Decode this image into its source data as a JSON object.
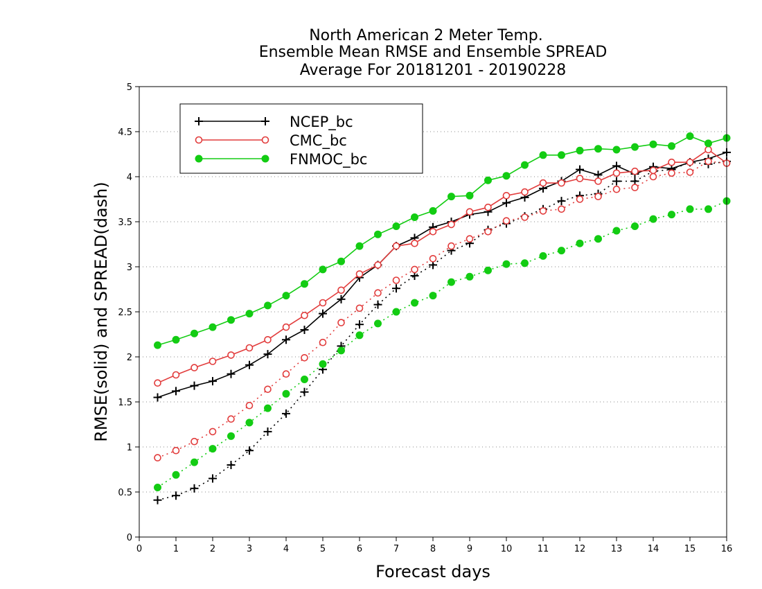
{
  "chart_data": {
    "type": "line",
    "title_lines": [
      "North American 2 Meter Temp.",
      "Ensemble Mean RMSE and Ensemble SPREAD",
      "Average For 20181201 - 20190228"
    ],
    "xlabel": "Forecast days",
    "ylabel": "RMSE(solid) and SPREAD(dash)",
    "xlim": [
      0,
      16
    ],
    "ylim": [
      0,
      5
    ],
    "xticks": [
      0,
      1,
      2,
      3,
      4,
      5,
      6,
      7,
      8,
      9,
      10,
      11,
      12,
      13,
      14,
      15,
      16
    ],
    "yticks": [
      0,
      0.5,
      1,
      1.5,
      2,
      2.5,
      3,
      3.5,
      4,
      4.5,
      5
    ],
    "ytick_labels": [
      "0",
      "0.5",
      "1",
      "1.5",
      "2",
      "2.5",
      "3",
      "3.5",
      "4",
      "4.5",
      "5"
    ],
    "grid": "horizontal dotted",
    "legend_placement": "top-left",
    "legend": [
      {
        "name": "NCEP_bc",
        "color": "#000000",
        "marker": "plus"
      },
      {
        "name": "CMC_bc",
        "color": "#e23c3c",
        "marker": "open-circle"
      },
      {
        "name": "FNMOC_bc",
        "color": "#13cc13",
        "marker": "filled-circle"
      }
    ],
    "x": [
      0.5,
      1,
      1.5,
      2,
      2.5,
      3,
      3.5,
      4,
      4.5,
      5,
      5.5,
      6,
      6.5,
      7,
      7.5,
      8,
      8.5,
      9,
      9.5,
      10,
      10.5,
      11,
      11.5,
      12,
      12.5,
      13,
      13.5,
      14,
      14.5,
      15,
      15.5,
      16
    ],
    "series": [
      {
        "model": "NCEP_bc",
        "metric": "RMSE",
        "style": "solid",
        "color": "#000000",
        "marker": "plus",
        "values": [
          1.55,
          1.62,
          1.68,
          1.73,
          1.81,
          1.91,
          2.03,
          2.19,
          2.3,
          2.48,
          2.64,
          2.88,
          3.02,
          3.23,
          3.32,
          3.44,
          3.5,
          3.58,
          3.61,
          3.71,
          3.77,
          3.87,
          3.95,
          4.08,
          4.02,
          4.12,
          4.03,
          4.11,
          4.09,
          4.16,
          4.2,
          4.27
        ]
      },
      {
        "model": "NCEP_bc",
        "metric": "SPREAD",
        "style": "dash",
        "color": "#000000",
        "marker": "plus",
        "values": [
          0.41,
          0.46,
          0.54,
          0.65,
          0.8,
          0.96,
          1.17,
          1.37,
          1.61,
          1.86,
          2.12,
          2.36,
          2.58,
          2.76,
          2.9,
          3.02,
          3.18,
          3.26,
          3.41,
          3.48,
          3.56,
          3.64,
          3.73,
          3.79,
          3.81,
          3.95,
          3.95,
          4.06,
          4.08,
          4.16,
          4.14,
          4.17
        ]
      },
      {
        "model": "CMC_bc",
        "metric": "RMSE",
        "style": "solid",
        "color": "#e23c3c",
        "marker": "open-circle",
        "values": [
          1.71,
          1.8,
          1.88,
          1.95,
          2.02,
          2.1,
          2.19,
          2.33,
          2.46,
          2.6,
          2.74,
          2.92,
          3.02,
          3.23,
          3.26,
          3.39,
          3.47,
          3.61,
          3.66,
          3.79,
          3.83,
          3.93,
          3.93,
          3.98,
          3.95,
          4.04,
          4.06,
          4.07,
          4.16,
          4.16,
          4.3,
          4.15
        ]
      },
      {
        "model": "CMC_bc",
        "metric": "SPREAD",
        "style": "dash",
        "color": "#e23c3c",
        "marker": "open-circle",
        "values": [
          0.88,
          0.96,
          1.06,
          1.17,
          1.31,
          1.46,
          1.64,
          1.81,
          1.99,
          2.16,
          2.38,
          2.54,
          2.71,
          2.85,
          2.97,
          3.09,
          3.23,
          3.31,
          3.39,
          3.51,
          3.55,
          3.62,
          3.64,
          3.75,
          3.78,
          3.86,
          3.88,
          4.0,
          4.04,
          4.05,
          4.17,
          4.15
        ]
      },
      {
        "model": "FNMOC_bc",
        "metric": "RMSE",
        "style": "solid",
        "color": "#13cc13",
        "marker": "filled-circle",
        "values": [
          2.13,
          2.19,
          2.26,
          2.33,
          2.41,
          2.48,
          2.57,
          2.68,
          2.81,
          2.97,
          3.06,
          3.23,
          3.36,
          3.45,
          3.55,
          3.62,
          3.78,
          3.79,
          3.96,
          4.01,
          4.13,
          4.24,
          4.24,
          4.29,
          4.31,
          4.3,
          4.33,
          4.36,
          4.34,
          4.45,
          4.37,
          4.43
        ]
      },
      {
        "model": "FNMOC_bc",
        "metric": "SPREAD",
        "style": "dash",
        "color": "#13cc13",
        "marker": "filled-circle",
        "values": [
          0.55,
          0.69,
          0.83,
          0.98,
          1.12,
          1.27,
          1.43,
          1.59,
          1.75,
          1.92,
          2.07,
          2.24,
          2.37,
          2.5,
          2.6,
          2.68,
          2.83,
          2.89,
          2.96,
          3.03,
          3.04,
          3.12,
          3.18,
          3.26,
          3.31,
          3.4,
          3.45,
          3.53,
          3.58,
          3.64,
          3.64,
          3.73
        ]
      }
    ]
  }
}
